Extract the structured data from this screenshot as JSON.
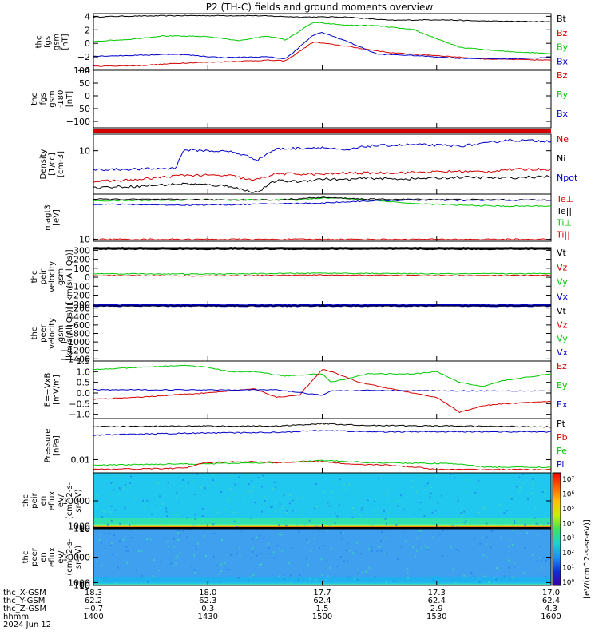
{
  "title": "P2 (TH-C) fields and ground moments overview",
  "colors": {
    "black": "#000000",
    "red": "#d40000",
    "green": "#00c800",
    "blue": "#0000c8",
    "axis": "#000000"
  },
  "chart_data": [
    {
      "type": "line",
      "ylabel": [
        "thc",
        "fgs",
        "gsm",
        "[nT]"
      ],
      "ylim": [
        -4,
        4.4
      ],
      "yticks": [
        {
          "v": 4,
          "label": "4"
        },
        {
          "v": 2,
          "label": "2"
        },
        {
          "v": 0,
          "label": "0"
        },
        {
          "v": -2,
          "label": "−2"
        },
        {
          "v": -4,
          "label": "−4"
        }
      ],
      "legend": [
        {
          "name": "Bt",
          "color": "black"
        },
        {
          "name": "Bz",
          "color": "red"
        },
        {
          "name": "By",
          "color": "green"
        },
        {
          "name": "Bx",
          "color": "blue"
        }
      ],
      "series": [
        {
          "name": "Bt",
          "color": "black",
          "x": [
            0,
            0.05,
            0.2,
            0.35,
            0.45,
            0.55,
            0.65,
            0.75,
            0.85,
            1.0
          ],
          "y": [
            3.9,
            4.0,
            4.1,
            4.1,
            3.9,
            3.9,
            3.4,
            3.5,
            3.3,
            3.2
          ]
        },
        {
          "name": "Bz",
          "color": "red",
          "x": [
            0,
            0.1,
            0.2,
            0.3,
            0.38,
            0.42,
            0.48,
            0.55,
            0.65,
            0.75,
            0.85,
            1.0
          ],
          "y": [
            -3.4,
            -3.3,
            -2.9,
            -2.7,
            -2.5,
            -2.6,
            0.2,
            -0.4,
            -1.4,
            -1.8,
            -2.3,
            -2.5
          ]
        },
        {
          "name": "By",
          "color": "green",
          "x": [
            0,
            0.08,
            0.15,
            0.25,
            0.32,
            0.38,
            0.42,
            0.48,
            0.55,
            0.62,
            0.7,
            0.8,
            0.9,
            1.0
          ],
          "y": [
            0.3,
            0.6,
            1.1,
            1.0,
            0.4,
            1.1,
            0.5,
            3.1,
            2.7,
            2.6,
            2.0,
            -0.6,
            -1.2,
            -1.5
          ]
        },
        {
          "name": "Bx",
          "color": "blue",
          "x": [
            0,
            0.08,
            0.18,
            0.28,
            0.38,
            0.42,
            0.48,
            0.5,
            0.55,
            0.62,
            0.7,
            0.8,
            0.9,
            1.0
          ],
          "y": [
            -1.9,
            -1.8,
            -1.6,
            -2.1,
            -2.0,
            -2.3,
            1.2,
            1.6,
            0.4,
            -1.6,
            -1.8,
            -2.2,
            -2.3,
            -2.1
          ]
        }
      ]
    },
    {
      "type": "line",
      "ylabel": [
        "thc",
        "fgs",
        "gsm",
        "-180",
        "[nT]"
      ],
      "ylim": [
        -125,
        100
      ],
      "yticks": [
        {
          "v": 100,
          "label": "100"
        },
        {
          "v": 50,
          "label": "50"
        },
        {
          "v": 0,
          "label": "0"
        },
        {
          "v": -50,
          "label": "−50"
        },
        {
          "v": -100,
          "label": "−100"
        }
      ],
      "legend": [
        {
          "name": "Bz",
          "color": "red"
        },
        {
          "name": "By",
          "color": "green"
        },
        {
          "name": "Bx",
          "color": "blue"
        }
      ],
      "series": []
    },
    {
      "type": "line",
      "scale": "log",
      "ylabel": [
        "Density",
        "[1/cc]",
        "[cm-3]"
      ],
      "ylim": [
        0.9,
        25
      ],
      "yticks": [
        {
          "v": 10,
          "label": "10"
        }
      ],
      "legend": [
        {
          "name": "Ne",
          "color": "red"
        },
        {
          "name": "Ni",
          "color": "black"
        },
        {
          "name": "Npot",
          "color": "blue"
        }
      ],
      "series": [
        {
          "name": "Ne",
          "color": "blue",
          "x": [
            0,
            0.1,
            0.18,
            0.2,
            0.3,
            0.36,
            0.4,
            0.5,
            0.55,
            0.6,
            0.7,
            0.8,
            0.86,
            0.9,
            1.0
          ],
          "y": [
            3.5,
            3.6,
            3.8,
            10.5,
            9.5,
            6,
            11,
            12,
            10,
            13,
            14,
            13,
            15,
            18,
            17
          ]
        },
        {
          "name": "Ni",
          "color": "red",
          "x": [
            0,
            0.1,
            0.2,
            0.3,
            0.35,
            0.4,
            0.5,
            0.55,
            0.6,
            0.7,
            0.8,
            0.86,
            0.9,
            1.0
          ],
          "y": [
            1.8,
            2.0,
            2.6,
            2.5,
            1.9,
            2.8,
            2.7,
            2.9,
            2.9,
            3.0,
            3.2,
            3.1,
            3.5,
            3.6
          ]
        },
        {
          "name": "Npot",
          "color": "black",
          "x": [
            0,
            0.1,
            0.2,
            0.3,
            0.33,
            0.36,
            0.4,
            0.45,
            0.5,
            0.55,
            0.6,
            0.65,
            0.7,
            0.8,
            0.9,
            1.0
          ],
          "y": [
            1.3,
            1.4,
            1.6,
            1.4,
            1.1,
            1.0,
            1.9,
            1.8,
            2.1,
            2.0,
            2.2,
            2.1,
            2.1,
            2.3,
            2.2,
            2.4
          ]
        }
      ]
    },
    {
      "type": "line",
      "scale": "log",
      "ylabel": [
        "magt3",
        "[eV]"
      ],
      "ylim": [
        8,
        2000
      ],
      "yticks": [
        {
          "v": 10,
          "label": "10"
        }
      ],
      "legend": [
        {
          "name": "Te⊥",
          "color": "red"
        },
        {
          "name": "Te||",
          "color": "black"
        },
        {
          "name": "Ti⊥",
          "color": "green"
        },
        {
          "name": "Ti||",
          "color": "red"
        }
      ],
      "series": [
        {
          "name": "Ti||",
          "color": "green",
          "x": [
            0,
            0.1,
            0.2,
            0.3,
            0.4,
            0.45,
            0.5,
            0.55,
            0.6,
            0.7,
            0.8,
            0.9,
            1.0
          ],
          "y": [
            900,
            950,
            1000,
            1000,
            1050,
            1000,
            1300,
            1200,
            1000,
            650,
            550,
            480,
            500
          ]
        },
        {
          "name": "Te||",
          "color": "black",
          "x": [
            0,
            0.2,
            0.4,
            0.5,
            0.6,
            0.8,
            1.0
          ],
          "y": [
            1100,
            1050,
            1000,
            1350,
            1100,
            1050,
            1000
          ]
        },
        {
          "name": "Te⊥",
          "color": "blue",
          "x": [
            0,
            0.1,
            0.2,
            0.3,
            0.4,
            0.5,
            0.6,
            0.7,
            0.8,
            0.9,
            1.0
          ],
          "y": [
            620,
            580,
            560,
            580,
            640,
            700,
            900,
            1000,
            950,
            980,
            1000
          ]
        },
        {
          "name": "Ti⊥",
          "color": "red",
          "x": [
            0,
            1.0
          ],
          "y": [
            10,
            10
          ]
        }
      ]
    },
    {
      "type": "line",
      "ylabel": [
        "thc",
        "peir",
        "velocity",
        "gsm",
        "[km/s(All Qs)]"
      ],
      "ylim": [
        -320,
        330
      ],
      "yticks": [
        {
          "v": 300,
          "label": "300"
        },
        {
          "v": 200,
          "label": "200"
        },
        {
          "v": 100,
          "label": "100"
        },
        {
          "v": 0,
          "label": "0"
        },
        {
          "v": -100,
          "label": "−100"
        },
        {
          "v": -200,
          "label": "−200"
        },
        {
          "v": -300,
          "label": "−300"
        }
      ],
      "legend": [
        {
          "name": "Vt",
          "color": "black"
        },
        {
          "name": "Vz",
          "color": "red"
        },
        {
          "name": "Vy",
          "color": "green"
        },
        {
          "name": "Vx",
          "color": "blue"
        }
      ],
      "series": [
        {
          "name": "Vt",
          "color": "black",
          "x": [
            0,
            1
          ],
          "y": [
            320,
            320
          ]
        },
        {
          "name": "Vy",
          "color": "green",
          "x": [
            0,
            0.25,
            0.5,
            0.75,
            1
          ],
          "y": [
            40,
            35,
            45,
            38,
            40
          ]
        },
        {
          "name": "Vz",
          "color": "red",
          "x": [
            0,
            0.25,
            0.5,
            0.75,
            1
          ],
          "y": [
            20,
            15,
            25,
            18,
            20
          ]
        },
        {
          "name": "Vx",
          "color": "blue",
          "x": [
            0,
            1
          ],
          "y": [
            -315,
            -315
          ]
        }
      ]
    },
    {
      "type": "line",
      "ylabel": [
        "thc",
        "peer",
        "velocity",
        "gsm",
        "[km/s(All Qs)]"
      ],
      "ylim": [
        -1450,
        -150
      ],
      "yticks": [
        {
          "v": -200,
          "label": "−200"
        },
        {
          "v": -400,
          "label": "−400"
        },
        {
          "v": -600,
          "label": "−600"
        },
        {
          "v": -800,
          "label": "−800"
        },
        {
          "v": -1000,
          "label": "−1000"
        },
        {
          "v": -1200,
          "label": "−1200"
        },
        {
          "v": -1400,
          "label": "−1400"
        }
      ],
      "legend": [
        {
          "name": "Vt",
          "color": "black"
        },
        {
          "name": "Vz",
          "color": "red"
        },
        {
          "name": "Vy",
          "color": "green"
        },
        {
          "name": "Vx",
          "color": "blue"
        }
      ],
      "series": []
    },
    {
      "type": "line",
      "ylabel": [
        "E=−VxB",
        "[mV/m]"
      ],
      "ylim": [
        -1.2,
        1.5
      ],
      "yticks": [
        {
          "v": 1.5,
          "label": "1.5"
        },
        {
          "v": 1.0,
          "label": "1.0"
        },
        {
          "v": 0.5,
          "label": "0.5"
        },
        {
          "v": 0,
          "label": "0.0"
        },
        {
          "v": -0.5,
          "label": "−0.5"
        },
        {
          "v": -1.0,
          "label": "−1.0"
        }
      ],
      "legend": [
        {
          "name": "Ez",
          "color": "red"
        },
        {
          "name": "Ey",
          "color": "green"
        },
        {
          "name": "Ex",
          "color": "blue"
        }
      ],
      "series": [
        {
          "name": "Ey",
          "color": "green",
          "x": [
            0,
            0.1,
            0.2,
            0.25,
            0.3,
            0.35,
            0.42,
            0.5,
            0.52,
            0.6,
            0.7,
            0.75,
            0.8,
            0.85,
            0.9,
            1.0
          ],
          "y": [
            1.1,
            1.2,
            1.3,
            1.2,
            1.0,
            1.0,
            0.8,
            0.9,
            0.5,
            0.9,
            0.9,
            1.0,
            0.5,
            0.3,
            0.6,
            0.9
          ]
        },
        {
          "name": "Ez",
          "color": "red",
          "x": [
            0,
            0.1,
            0.2,
            0.25,
            0.3,
            0.35,
            0.4,
            0.45,
            0.5,
            0.52,
            0.58,
            0.65,
            0.72,
            0.75,
            0.8,
            0.85,
            0.9,
            1.0
          ],
          "y": [
            -0.3,
            -0.2,
            -0.05,
            0.0,
            0.1,
            0.2,
            -0.2,
            -0.1,
            1.1,
            1.0,
            0.5,
            0.2,
            -0.1,
            -0.2,
            -0.9,
            -0.6,
            -0.5,
            -0.4
          ]
        },
        {
          "name": "Ex",
          "color": "blue",
          "x": [
            0,
            0.2,
            0.4,
            0.5,
            0.52,
            0.6,
            0.8,
            1.0
          ],
          "y": [
            0.15,
            0.15,
            0.15,
            -0.1,
            0.1,
            0.12,
            0.1,
            0.1
          ]
        }
      ]
    },
    {
      "type": "line",
      "scale": "log",
      "ylabel": [
        "Pressure",
        "[nPa]"
      ],
      "ylim": [
        0.002,
        1.5
      ],
      "yticks": [
        {
          "v": 0.01,
          "label": "0.01"
        }
      ],
      "legend": [
        {
          "name": "Pt",
          "color": "black"
        },
        {
          "name": "Pb",
          "color": "red"
        },
        {
          "name": "Pe",
          "color": "green"
        },
        {
          "name": "Pi",
          "color": "blue"
        }
      ],
      "series": [
        {
          "name": "Pt",
          "color": "black",
          "x": [
            0,
            0.2,
            0.4,
            0.5,
            0.6,
            0.8,
            1.0
          ],
          "y": [
            0.55,
            0.6,
            0.6,
            0.8,
            0.65,
            0.6,
            0.55
          ]
        },
        {
          "name": "Pi",
          "color": "blue",
          "x": [
            0,
            0.2,
            0.4,
            0.5,
            0.6,
            0.8,
            1.0
          ],
          "y": [
            0.2,
            0.25,
            0.28,
            0.35,
            0.3,
            0.3,
            0.3
          ]
        },
        {
          "name": "Pe",
          "color": "green",
          "x": [
            0,
            0.2,
            0.25,
            0.4,
            0.5,
            0.6,
            0.8,
            0.85,
            1.0
          ],
          "y": [
            0.005,
            0.006,
            0.006,
            0.007,
            0.009,
            0.007,
            0.006,
            0.004,
            0.004
          ]
        },
        {
          "name": "Pb",
          "color": "red",
          "x": [
            0,
            0.2,
            0.25,
            0.35,
            0.4,
            0.5,
            0.55,
            0.65,
            0.75,
            0.8,
            0.9,
            1.0
          ],
          "y": [
            0.003,
            0.0035,
            0.007,
            0.008,
            0.007,
            0.008,
            0.006,
            0.005,
            0.003,
            0.003,
            0.003,
            0.003
          ]
        }
      ]
    },
    {
      "type": "heatmap",
      "ylabel": [
        "thc",
        "peir",
        "en",
        "eflux",
        "eV/",
        "(cm^2-s-",
        "sr-eV)"
      ],
      "ylim": [
        7,
        20000
      ],
      "yticks": [
        {
          "v": 10000,
          "label": "10000"
        },
        {
          "v": 1000,
          "label": "1000"
        },
        {
          "v": 100,
          "label": "100"
        },
        {
          "v": 10,
          "label": "10"
        }
      ]
    },
    {
      "type": "heatmap",
      "ylabel": [
        "thc",
        "peer",
        "en",
        "eflux",
        "eV/",
        "(cm^2-s-",
        "sr-eV)"
      ],
      "ylim": [
        7,
        20000
      ],
      "yticks": [
        {
          "v": 10000,
          "label": "10000"
        },
        {
          "v": 1000,
          "label": "1000"
        },
        {
          "v": 100,
          "label": "100"
        },
        {
          "v": 10,
          "label": "10"
        }
      ]
    }
  ],
  "colorbar": {
    "label": "[eV/(cm^2-s-sr-eV)]",
    "ticks": [
      "10⁷",
      "10⁶",
      "10⁵",
      "10⁴",
      "10³",
      "10²",
      "10¹",
      "10⁰"
    ]
  },
  "xaxis": {
    "row_labels": [
      "thc_X-GSM",
      "thc_Y-GSM",
      "thc_Z-GSM",
      "hhmm",
      "2024 Jun 12"
    ],
    "ticks": [
      {
        "values": [
          "18.3",
          "62.2",
          "−0.7",
          "1400"
        ]
      },
      {
        "values": [
          "18.0",
          "62.3",
          "0.3",
          "1430"
        ]
      },
      {
        "values": [
          "17.7",
          "62.4",
          "1.5",
          "1500"
        ]
      },
      {
        "values": [
          "17.3",
          "62.4",
          "2.9",
          "1530"
        ]
      },
      {
        "values": [
          "17.0",
          "62.4",
          "4.3",
          "1600"
        ]
      }
    ]
  }
}
